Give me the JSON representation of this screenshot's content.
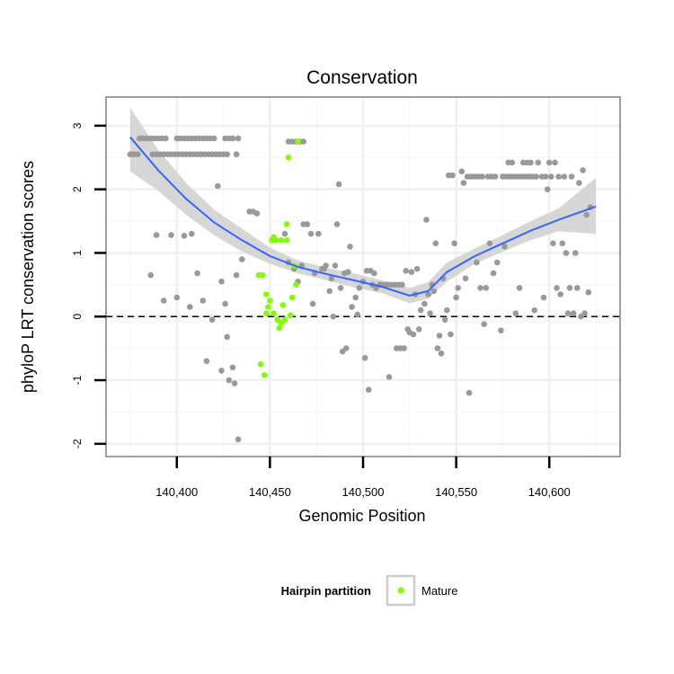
{
  "chart_data": {
    "type": "scatter",
    "title": "Conservation",
    "xlabel": "Genomic Position",
    "ylabel": "phyloP LRT conservation scores",
    "xlim": [
      140362,
      140638
    ],
    "ylim": [
      -2.2,
      3.45
    ],
    "x_ticks": [
      140400,
      140450,
      140500,
      140550,
      140600
    ],
    "x_tick_labels": [
      "140,400",
      "140,450",
      "140,500",
      "140,550",
      "140,600"
    ],
    "y_ticks": [
      -2,
      -1,
      0,
      1,
      2,
      3
    ],
    "y_tick_labels": [
      "-2",
      "-1",
      "0",
      "1",
      "2",
      "3"
    ],
    "grid": true,
    "reference_line": {
      "y": 0,
      "style": "dashed"
    },
    "legend": {
      "title": "Hairpin partition",
      "position": "bottom",
      "entries": [
        "Mature"
      ]
    },
    "colors": {
      "other": "#999999",
      "mature": "#7fff00",
      "smooth": "#3366ff",
      "band": "#d6d6d6"
    },
    "series": [
      {
        "name": "",
        "color": "#999999",
        "points": [
          [
            140375,
            2.55
          ],
          [
            140377,
            2.55
          ],
          [
            140379,
            2.55
          ],
          [
            140380,
            2.8
          ],
          [
            140382,
            2.8
          ],
          [
            140384,
            2.8
          ],
          [
            140386,
            2.8
          ],
          [
            140387,
            2.55
          ],
          [
            140388,
            2.8
          ],
          [
            140389,
            2.55
          ],
          [
            140390,
            2.8
          ],
          [
            140391,
            2.55
          ],
          [
            140392,
            2.8
          ],
          [
            140393,
            2.55
          ],
          [
            140394,
            2.8
          ],
          [
            140395,
            2.55
          ],
          [
            140397,
            2.55
          ],
          [
            140399,
            2.55
          ],
          [
            140400,
            2.8
          ],
          [
            140401,
            2.55
          ],
          [
            140402,
            2.8
          ],
          [
            140403,
            2.55
          ],
          [
            140404,
            2.8
          ],
          [
            140405,
            2.55
          ],
          [
            140406,
            2.8
          ],
          [
            140407,
            2.55
          ],
          [
            140408,
            2.8
          ],
          [
            140409,
            2.55
          ],
          [
            140410,
            2.8
          ],
          [
            140411,
            2.55
          ],
          [
            140412,
            2.8
          ],
          [
            140413,
            2.55
          ],
          [
            140414,
            2.8
          ],
          [
            140415,
            2.55
          ],
          [
            140416,
            2.8
          ],
          [
            140417,
            2.55
          ],
          [
            140418,
            2.8
          ],
          [
            140419,
            2.55
          ],
          [
            140420,
            2.8
          ],
          [
            140421,
            2.55
          ],
          [
            140423,
            2.55
          ],
          [
            140425,
            2.55
          ],
          [
            140426,
            2.8
          ],
          [
            140427,
            2.55
          ],
          [
            140428,
            2.8
          ],
          [
            140430,
            2.8
          ],
          [
            140432,
            2.55
          ],
          [
            140433,
            2.8
          ],
          [
            140386,
            0.65
          ],
          [
            140389,
            1.28
          ],
          [
            140393,
            0.25
          ],
          [
            140397,
            1.28
          ],
          [
            140400,
            0.3
          ],
          [
            140404,
            1.27
          ],
          [
            140407,
            0.15
          ],
          [
            140408,
            1.3
          ],
          [
            140411,
            0.68
          ],
          [
            140414,
            0.25
          ],
          [
            140416,
            -0.7
          ],
          [
            140419,
            -0.05
          ],
          [
            140422,
            2.05
          ],
          [
            140424,
            0.55
          ],
          [
            140424,
            -0.85
          ],
          [
            140426,
            0.2
          ],
          [
            140427,
            -0.32
          ],
          [
            140428,
            -1.0
          ],
          [
            140430,
            -0.8
          ],
          [
            140431,
            -1.05
          ],
          [
            140432,
            0.65
          ],
          [
            140433,
            -1.93
          ],
          [
            140435,
            0.9
          ],
          [
            140439,
            1.65
          ],
          [
            140441,
            1.65
          ],
          [
            140443,
            1.62
          ],
          [
            140460,
            2.75
          ],
          [
            140462,
            2.75
          ],
          [
            140464,
            2.75
          ],
          [
            140466,
            2.75
          ],
          [
            140468,
            2.75
          ],
          [
            140458,
            1.3
          ],
          [
            140460,
            0.85
          ],
          [
            140463,
            0.75
          ],
          [
            140465,
            0.55
          ],
          [
            140467,
            0.8
          ],
          [
            140468,
            1.45
          ],
          [
            140470,
            1.45
          ],
          [
            140472,
            1.3
          ],
          [
            140473,
            0.2
          ],
          [
            140474,
            0.68
          ],
          [
            140476,
            1.3
          ],
          [
            140478,
            0.75
          ],
          [
            140479,
            0.75
          ],
          [
            140480,
            0.8
          ],
          [
            140482,
            0.4
          ],
          [
            140483,
            0.6
          ],
          [
            140484,
            0.0
          ],
          [
            140485,
            0.8
          ],
          [
            140486,
            1.45
          ],
          [
            140487,
            2.08
          ],
          [
            140488,
            0.45
          ],
          [
            140489,
            -0.55
          ],
          [
            140490,
            0.68
          ],
          [
            140491,
            -0.5
          ],
          [
            140492,
            0.7
          ],
          [
            140493,
            1.1
          ],
          [
            140494,
            0.15
          ],
          [
            140496,
            0.3
          ],
          [
            140497,
            0.03
          ],
          [
            140498,
            0.45
          ],
          [
            140500,
            0.55
          ],
          [
            140501,
            -0.65
          ],
          [
            140502,
            0.72
          ],
          [
            140503,
            -1.15
          ],
          [
            140504,
            0.72
          ],
          [
            140505,
            0.5
          ],
          [
            140506,
            0.68
          ],
          [
            140507,
            0.45
          ],
          [
            140509,
            0.5
          ],
          [
            140510,
            0.5
          ],
          [
            140512,
            0.5
          ],
          [
            140513,
            0.5
          ],
          [
            140514,
            -0.95
          ],
          [
            140515,
            0.5
          ],
          [
            140517,
            0.5
          ],
          [
            140518,
            -0.5
          ],
          [
            140519,
            0.5
          ],
          [
            140520,
            -0.5
          ],
          [
            140521,
            0.5
          ],
          [
            140522,
            -0.5
          ],
          [
            140523,
            0.72
          ],
          [
            140524,
            -0.2
          ],
          [
            140525,
            -0.25
          ],
          [
            140526,
            0.7
          ],
          [
            140527,
            -0.28
          ],
          [
            140528,
            0.35
          ],
          [
            140529,
            0.75
          ],
          [
            140530,
            -0.2
          ],
          [
            140531,
            0.1
          ],
          [
            140533,
            0.2
          ],
          [
            140534,
            1.52
          ],
          [
            140535,
            0.35
          ],
          [
            140536,
            0.05
          ],
          [
            140537,
            0.5
          ],
          [
            140538,
            0.4
          ],
          [
            140539,
            1.15
          ],
          [
            140540,
            -0.5
          ],
          [
            140541,
            -0.3
          ],
          [
            140542,
            -0.58
          ],
          [
            140543,
            0.6
          ],
          [
            140544,
            -0.05
          ],
          [
            140545,
            0.1
          ],
          [
            140546,
            2.22
          ],
          [
            140547,
            -0.28
          ],
          [
            140548,
            2.22
          ],
          [
            140549,
            1.15
          ],
          [
            140550,
            0.3
          ],
          [
            140551,
            0.45
          ],
          [
            140553,
            2.28
          ],
          [
            140554,
            2.1
          ],
          [
            140555,
            0.6
          ],
          [
            140556,
            2.2
          ],
          [
            140557,
            -1.2
          ],
          [
            140558,
            2.2
          ],
          [
            140560,
            2.2
          ],
          [
            140561,
            0.85
          ],
          [
            140562,
            2.2
          ],
          [
            140563,
            0.45
          ],
          [
            140564,
            2.2
          ],
          [
            140565,
            -0.12
          ],
          [
            140566,
            0.45
          ],
          [
            140567,
            2.2
          ],
          [
            140568,
            1.15
          ],
          [
            140569,
            2.2
          ],
          [
            140570,
            0.68
          ],
          [
            140571,
            2.2
          ],
          [
            140572,
            0.85
          ],
          [
            140574,
            -0.22
          ],
          [
            140575,
            2.2
          ],
          [
            140576,
            1.1
          ],
          [
            140577,
            2.2
          ],
          [
            140578,
            2.42
          ],
          [
            140579,
            2.2
          ],
          [
            140580,
            2.42
          ],
          [
            140581,
            2.2
          ],
          [
            140582,
            0.05
          ],
          [
            140583,
            2.2
          ],
          [
            140584,
            0.45
          ],
          [
            140585,
            2.2
          ],
          [
            140586,
            2.42
          ],
          [
            140587,
            2.2
          ],
          [
            140588,
            2.42
          ],
          [
            140589,
            2.2
          ],
          [
            140590,
            2.42
          ],
          [
            140591,
            2.2
          ],
          [
            140592,
            0.1
          ],
          [
            140593,
            2.2
          ],
          [
            140594,
            2.42
          ],
          [
            140596,
            2.2
          ],
          [
            140597,
            0.3
          ],
          [
            140598,
            2.2
          ],
          [
            140599,
            2.0
          ],
          [
            140600,
            2.42
          ],
          [
            140601,
            2.2
          ],
          [
            140602,
            1.15
          ],
          [
            140603,
            2.42
          ],
          [
            140604,
            0.45
          ],
          [
            140605,
            2.2
          ],
          [
            140606,
            0.35
          ],
          [
            140607,
            1.15
          ],
          [
            140608,
            2.2
          ],
          [
            140609,
            1.0
          ],
          [
            140610,
            0.05
          ],
          [
            140611,
            0.45
          ],
          [
            140612,
            2.2
          ],
          [
            140613,
            0.05
          ],
          [
            140614,
            1.0
          ],
          [
            140615,
            0.45
          ],
          [
            140616,
            2.1
          ],
          [
            140617,
            0.0
          ],
          [
            140618,
            2.3
          ],
          [
            140619,
            0.05
          ],
          [
            140620,
            1.6
          ],
          [
            140621,
            0.38
          ],
          [
            140622,
            1.72
          ]
        ]
      },
      {
        "name": "Mature",
        "color": "#7fff00",
        "points": [
          [
            140444,
            0.65
          ],
          [
            140445,
            -0.75
          ],
          [
            140446,
            0.65
          ],
          [
            140447,
            -0.92
          ],
          [
            140448,
            0.05
          ],
          [
            140449,
            0.15
          ],
          [
            140450,
            0.25
          ],
          [
            140451,
            1.2
          ],
          [
            140452,
            1.25
          ],
          [
            140453,
            1.2
          ],
          [
            140454,
            -0.05
          ],
          [
            140455,
            -0.18
          ],
          [
            140456,
            1.2
          ],
          [
            140457,
            0.18
          ],
          [
            140458,
            -0.05
          ],
          [
            140459,
            1.45
          ],
          [
            140460,
            2.5
          ],
          [
            140461,
            0.02
          ],
          [
            140462,
            0.3
          ],
          [
            140463,
            0.8
          ],
          [
            140464,
            0.5
          ],
          [
            140465,
            2.75
          ],
          [
            140448,
            0.35
          ],
          [
            140452,
            0.05
          ],
          [
            140456,
            -0.1
          ],
          [
            140459,
            1.2
          ]
        ]
      }
    ],
    "smooth": {
      "x": [
        140375,
        140390,
        140405,
        140420,
        140435,
        140450,
        140465,
        140480,
        140495,
        140510,
        140525,
        140535,
        140545,
        140560,
        140575,
        140590,
        140605,
        140625
      ],
      "y": [
        2.82,
        2.3,
        1.85,
        1.48,
        1.2,
        0.95,
        0.78,
        0.67,
        0.57,
        0.47,
        0.33,
        0.4,
        0.7,
        0.95,
        1.15,
        1.35,
        1.52,
        1.73
      ],
      "lower": [
        2.28,
        1.98,
        1.6,
        1.28,
        1.02,
        0.83,
        0.68,
        0.57,
        0.46,
        0.37,
        0.21,
        0.28,
        0.55,
        0.83,
        1.02,
        1.2,
        1.34,
        1.3
      ],
      "upper": [
        3.28,
        2.62,
        2.1,
        1.68,
        1.38,
        1.08,
        0.88,
        0.77,
        0.68,
        0.57,
        0.45,
        0.54,
        0.85,
        1.07,
        1.28,
        1.5,
        1.7,
        2.18
      ]
    }
  }
}
